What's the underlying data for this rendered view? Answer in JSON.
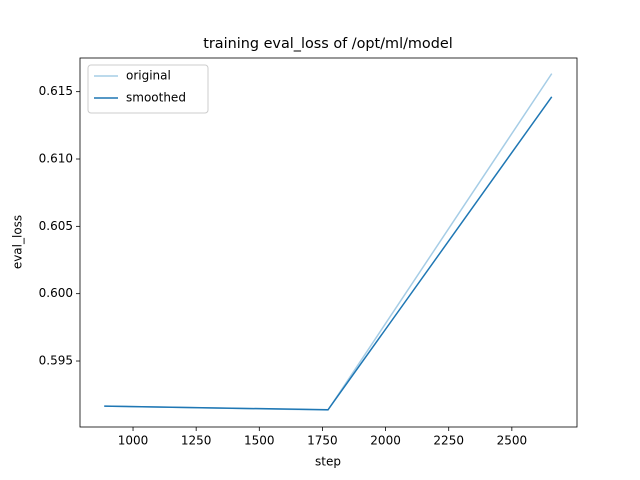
{
  "chart_data": {
    "type": "line",
    "title": "training eval_loss of /opt/ml/model",
    "x_label": "step",
    "y_label": "eval_loss",
    "x": [
      886,
      1772,
      2658
    ],
    "series": [
      {
        "name": "original",
        "color": "#a6cde6",
        "values": [
          0.59165,
          0.59136,
          0.61634
        ]
      },
      {
        "name": "smoothed",
        "color": "#1f77b4",
        "values": [
          0.59165,
          0.59138,
          0.61462
        ]
      }
    ],
    "xlim": [
      790,
      2758
    ],
    "ylim": [
      0.5901,
      0.6175
    ],
    "xticks": [
      1000,
      1250,
      1500,
      1750,
      2000,
      2250,
      2500
    ],
    "yticks": [
      0.595,
      {
        "value": 0.6,
        "label": "0.600"
      },
      0.605,
      {
        "value": 0.61,
        "label": "0.610"
      },
      0.615
    ],
    "grid": false,
    "legend": "upper-left"
  }
}
